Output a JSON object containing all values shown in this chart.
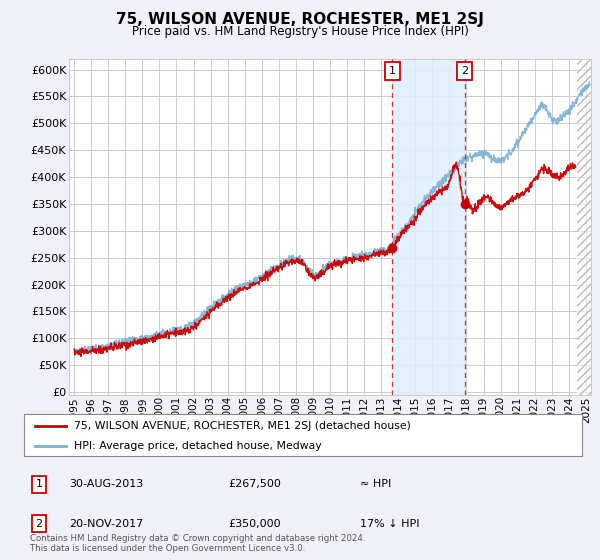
{
  "title": "75, WILSON AVENUE, ROCHESTER, ME1 2SJ",
  "subtitle": "Price paid vs. HM Land Registry's House Price Index (HPI)",
  "ylabel_ticks": [
    0,
    50000,
    100000,
    150000,
    200000,
    250000,
    300000,
    350000,
    400000,
    450000,
    500000,
    550000,
    600000
  ],
  "ylim": [
    -5000,
    620000
  ],
  "xlim_start": 1994.7,
  "xlim_end": 2025.3,
  "bg_color": "#f0f0f8",
  "plot_bg": "#ffffff",
  "grid_color": "#cccccc",
  "red_line_color": "#cc0000",
  "blue_line_color": "#7ab0d4",
  "shade_color": "#ddeeff",
  "marker1_x": 2013.65,
  "marker1_y": 267500,
  "marker2_x": 2017.9,
  "marker2_y": 350000,
  "legend_red": "75, WILSON AVENUE, ROCHESTER, ME1 2SJ (detached house)",
  "legend_blue": "HPI: Average price, detached house, Medway",
  "ann1_date": "30-AUG-2013",
  "ann1_price": "£267,500",
  "ann1_hpi": "≈ HPI",
  "ann2_date": "20-NOV-2017",
  "ann2_price": "£350,000",
  "ann2_hpi": "17% ↓ HPI",
  "footer": "Contains HM Land Registry data © Crown copyright and database right 2024.\nThis data is licensed under the Open Government Licence v3.0.",
  "hatch_start": 2024.5
}
